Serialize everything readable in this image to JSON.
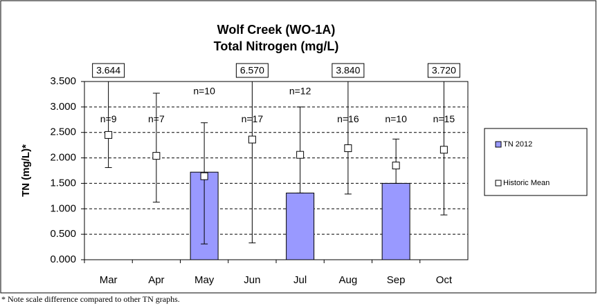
{
  "chart_data": {
    "type": "bar",
    "title": [
      "Wolf Creek (WO-1A)",
      "Total Nitrogen (mg/L)"
    ],
    "y_label": "TN (mg/L)*",
    "footnote": "* Note scale difference compared to other TN graphs.",
    "categories": [
      "Mar",
      "Apr",
      "May",
      "Jun",
      "Jul",
      "Aug",
      "Sep",
      "Oct"
    ],
    "series": [
      {
        "name": "TN 2012",
        "color": "#9999ff",
        "values": [
          null,
          null,
          1.72,
          null,
          1.31,
          null,
          1.5,
          null
        ]
      },
      {
        "name": "Historic Mean",
        "color": "#ffffff",
        "values": [
          2.45,
          2.04,
          1.64,
          2.36,
          2.06,
          2.19,
          1.85,
          2.16
        ],
        "low": [
          1.81,
          1.13,
          0.31,
          0.33,
          1.31,
          1.29,
          1.5,
          0.88
        ],
        "high": [
          3.644,
          3.27,
          2.69,
          6.57,
          3.0,
          3.84,
          2.37,
          3.72
        ],
        "high_labels": [
          "3.644",
          null,
          null,
          "6.570",
          null,
          "3.840",
          null,
          "3.720"
        ],
        "n_labels": [
          "n=9",
          "n=7",
          "n=10",
          "n=17",
          "n=12",
          "n=16",
          "n=10",
          "n=15"
        ]
      }
    ],
    "ylim": [
      0,
      3.5
    ],
    "yticks": [
      {
        "value": 0,
        "label": "0.000"
      },
      {
        "value": 0.5,
        "label": "0.500"
      },
      {
        "value": 1,
        "label": "1.000"
      },
      {
        "value": 1.5,
        "label": "1.500"
      },
      {
        "value": 2,
        "label": "2.000"
      },
      {
        "value": 2.5,
        "label": "2.500"
      },
      {
        "value": 3,
        "label": "3.000"
      },
      {
        "value": 3.5,
        "label": "3.500"
      }
    ],
    "grid": true
  }
}
